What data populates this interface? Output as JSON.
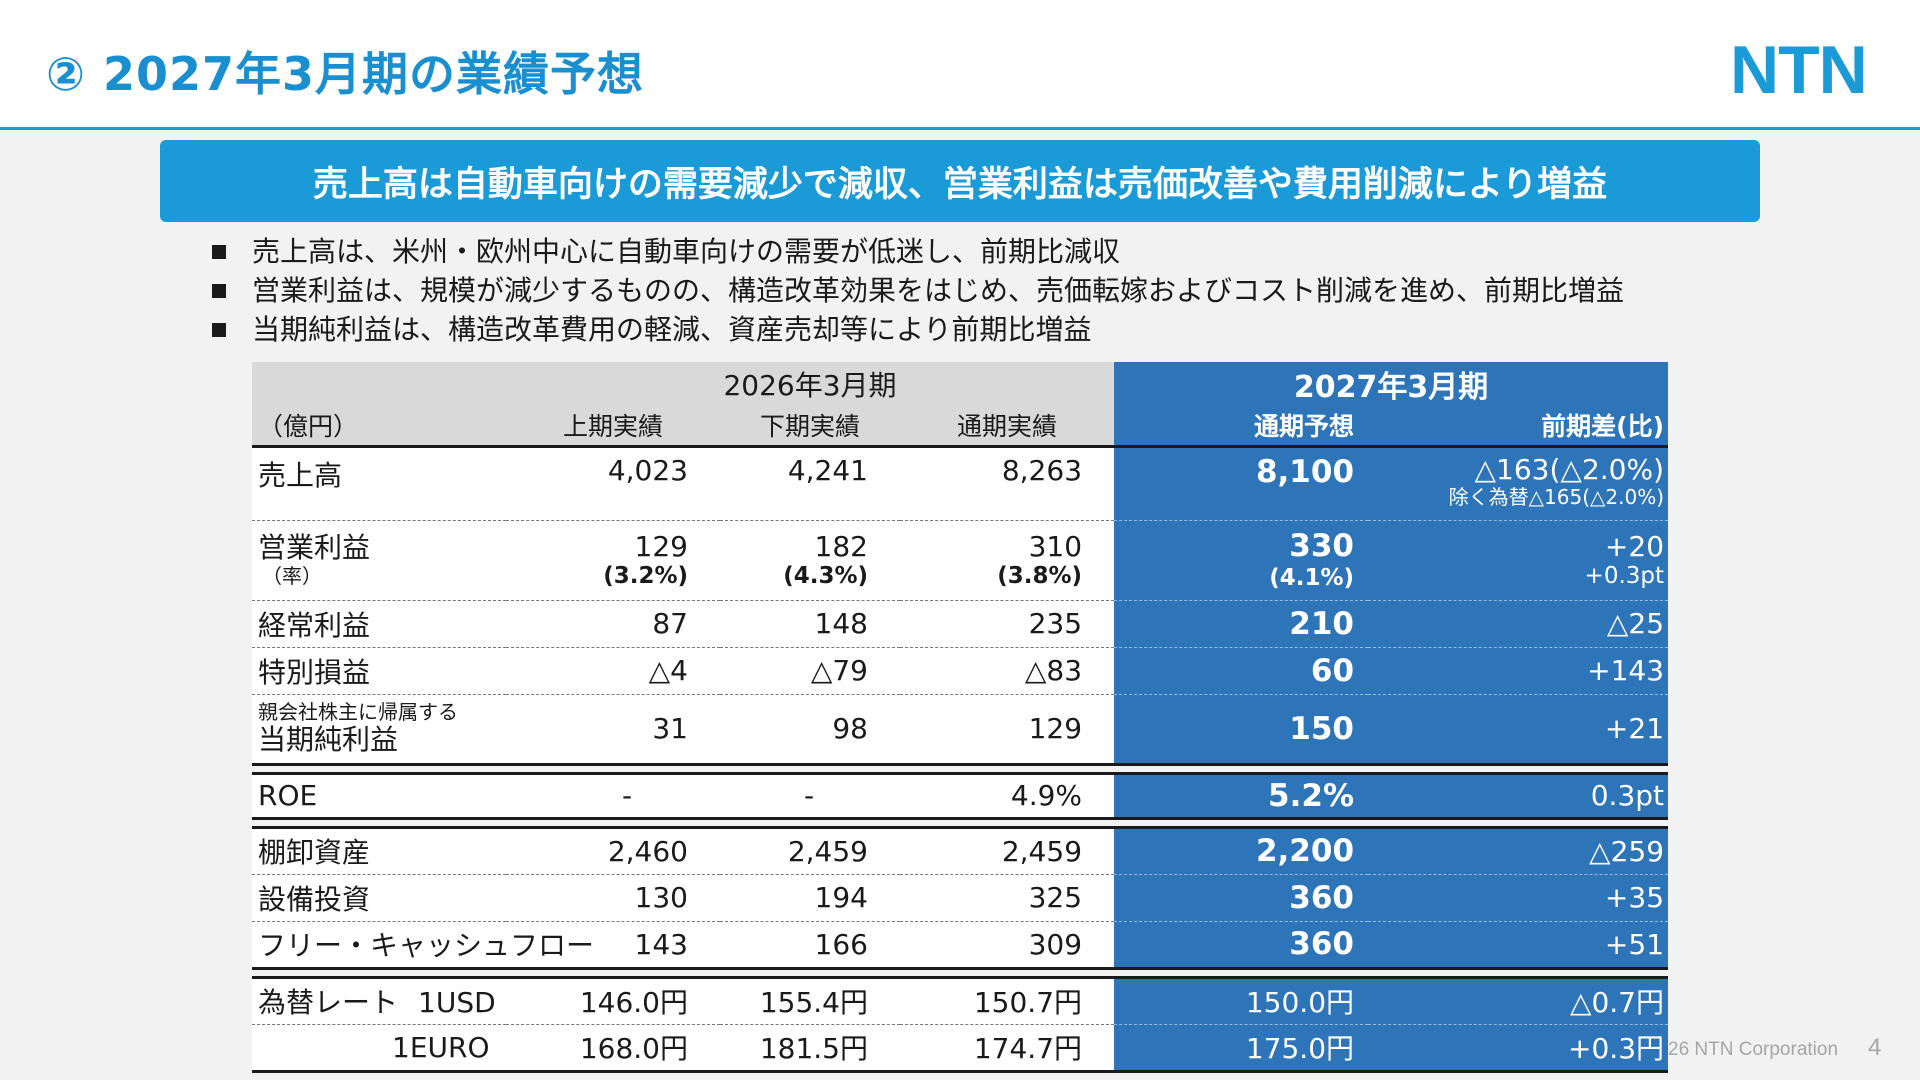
{
  "header": {
    "title": "② 2027年3月期の業績予想",
    "logo_text": "NTN",
    "accent_color": "#1a9ad6",
    "highlight_color": "#2e74b8"
  },
  "banner": {
    "text": "売上高は自動車向けの需要減少で減収、営業利益は売価改善や費用削減により増益"
  },
  "bullets": [
    "売上高は、米州・欧州中心に自動車向けの需要が低迷し、前期比減収",
    "営業利益は、規模が減少するものの、構造改革効果をはじめ、売価転嫁およびコスト削減を進め、前期比増益",
    "当期純利益は、構造改革費用の軽減、資産売却等により前期比増益"
  ],
  "table": {
    "period_prev": "2026年3月期",
    "period_next": "2027年3月期",
    "unit_label": "（億円）",
    "columns": [
      "上期実績",
      "下期実績",
      "通期実績",
      "通期予想",
      "前期差(比)"
    ],
    "rows": {
      "sales": {
        "label": "売上高",
        "h1": "4,023",
        "h2": "4,241",
        "fy": "8,263",
        "forecast": "8,100",
        "diff": "△163(△2.0%)",
        "note": "除く為替△165(△2.0%)"
      },
      "op": {
        "label": "営業利益",
        "sublabel": "（率）",
        "h1": "129",
        "h2": "182",
        "fy": "310",
        "forecast": "330",
        "diff": "+20",
        "h1_rate": "(3.2%)",
        "h2_rate": "(4.3%)",
        "fy_rate": "(3.8%)",
        "forecast_rate": "(4.1%)",
        "diff_rate": "+0.3pt"
      },
      "ordinary": {
        "label": "経常利益",
        "h1": "87",
        "h2": "148",
        "fy": "235",
        "forecast": "210",
        "diff": "△25"
      },
      "extra": {
        "label": "特別損益",
        "h1": "△4",
        "h2": "△79",
        "fy": "△83",
        "forecast": "60",
        "diff": "+143"
      },
      "net": {
        "sublabel": "親会社株主に帰属する",
        "label": "当期純利益",
        "h1": "31",
        "h2": "98",
        "fy": "129",
        "forecast": "150",
        "diff": "+21"
      },
      "roe": {
        "label": "ROE",
        "h1": "-",
        "h2": "-",
        "fy": "4.9%",
        "forecast": "5.2%",
        "diff": "0.3pt"
      },
      "inventory": {
        "label": "棚卸資産",
        "h1": "2,460",
        "h2": "2,459",
        "fy": "2,459",
        "forecast": "2,200",
        "diff": "△259"
      },
      "capex": {
        "label": "設備投資",
        "h1": "130",
        "h2": "194",
        "fy": "325",
        "forecast": "360",
        "diff": "+35"
      },
      "fcf": {
        "label": "フリー・キャッシュフロー",
        "h1": "143",
        "h2": "166",
        "fy": "309",
        "forecast": "360",
        "diff": "+51"
      },
      "usd": {
        "label": "為替レート",
        "currency": "1USD",
        "h1": "146.0円",
        "h2": "155.4円",
        "fy": "150.7円",
        "forecast": "150.0円",
        "diff": "△0.7円"
      },
      "euro": {
        "currency": "1EURO",
        "h1": "168.0円",
        "h2": "181.5円",
        "fy": "174.7円",
        "forecast": "175.0円",
        "diff": "+0.3円"
      }
    }
  },
  "footer": {
    "copyright": "26 NTN Corporation",
    "page": "4"
  }
}
